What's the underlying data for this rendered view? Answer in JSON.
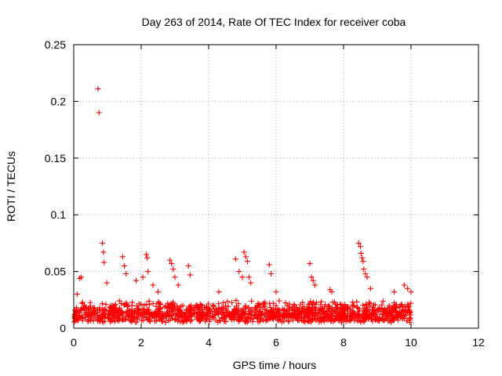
{
  "chart_data": {
    "type": "scatter",
    "title": "Day 263 of 2014, Rate Of TEC Index for receiver coba",
    "xlabel": "GPS time / hours",
    "ylabel": "ROTI / TECUs",
    "xlim": [
      0,
      12
    ],
    "ylim": [
      0,
      0.25
    ],
    "xticks": [
      0,
      2,
      4,
      6,
      8,
      10,
      12
    ],
    "xtick_labels": [
      "0",
      "2",
      "4",
      "6",
      "8",
      "10",
      "12"
    ],
    "yticks": [
      0,
      0.05,
      0.1,
      0.15,
      0.2,
      0.25
    ],
    "ytick_labels": [
      "0",
      "0.05",
      "0.1",
      "0.15",
      "0.2",
      "0.25"
    ],
    "grid": true,
    "marker": "+",
    "color": "#ff0000",
    "background_band": {
      "x_range": [
        0,
        10
      ],
      "y_range": [
        0.005,
        0.025
      ]
    },
    "series": [
      {
        "name": "ROTI",
        "x": [
          0.1,
          0.18,
          0.22,
          0.72,
          0.75,
          0.85,
          0.88,
          0.9,
          0.98,
          1.45,
          1.5,
          1.55,
          1.85,
          2.05,
          2.15,
          2.18,
          2.2,
          2.35,
          2.5,
          2.85,
          2.9,
          2.95,
          3.0,
          3.1,
          3.4,
          3.45,
          4.3,
          4.8,
          4.9,
          5.0,
          5.05,
          5.1,
          5.15,
          5.2,
          5.25,
          5.8,
          5.85,
          6.0,
          7.0,
          7.05,
          7.1,
          7.15,
          7.6,
          7.65,
          8.45,
          8.5,
          8.52,
          8.55,
          8.58,
          8.6,
          8.65,
          8.7,
          8.8,
          9.5,
          9.8,
          9.9,
          10.0
        ],
        "y": [
          0.03,
          0.044,
          0.045,
          0.211,
          0.19,
          0.075,
          0.067,
          0.058,
          0.04,
          0.063,
          0.055,
          0.048,
          0.042,
          0.045,
          0.065,
          0.062,
          0.05,
          0.038,
          0.032,
          0.06,
          0.057,
          0.052,
          0.045,
          0.038,
          0.055,
          0.047,
          0.032,
          0.061,
          0.05,
          0.045,
          0.067,
          0.063,
          0.059,
          0.045,
          0.04,
          0.056,
          0.048,
          0.032,
          0.057,
          0.045,
          0.042,
          0.038,
          0.034,
          0.032,
          0.075,
          0.072,
          0.066,
          0.062,
          0.059,
          0.052,
          0.048,
          0.045,
          0.035,
          0.032,
          0.038,
          0.035,
          0.032
        ]
      }
    ]
  }
}
